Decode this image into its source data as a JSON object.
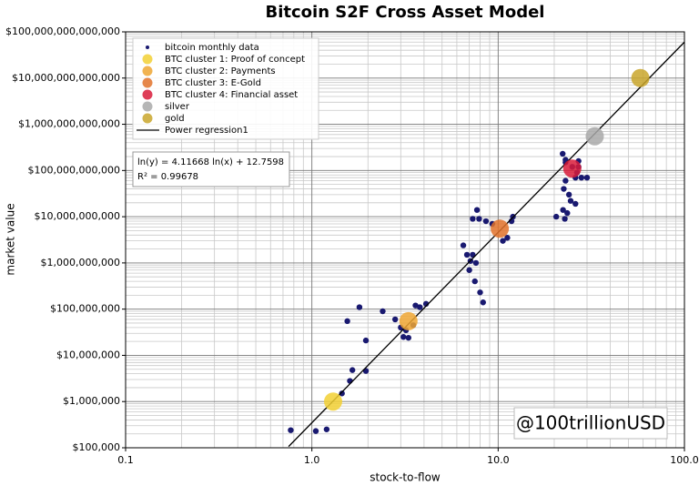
{
  "chart_data": {
    "type": "scatter",
    "title": "Bitcoin S2F Cross Asset Model",
    "xlabel": "stock-to-flow",
    "ylabel": "market value",
    "xscale": "log",
    "yscale": "log",
    "grid": true,
    "legend": "upper left",
    "xlim": [
      0.1,
      100
    ],
    "xticks": [
      0.1,
      {
        "value": 1,
        "label": "1.0"
      },
      {
        "value": 10,
        "label": "10.0"
      },
      {
        "value": 100,
        "label": "100.0"
      }
    ],
    "ylim": [
      100000,
      100000000000000
    ],
    "yticks": [
      {
        "value": 100000,
        "label": "$100,000"
      },
      {
        "value": 1000000,
        "label": "$1,000,000"
      },
      {
        "value": 10000000,
        "label": "$10,000,000"
      },
      {
        "value": 100000000,
        "label": "$100,000,000"
      },
      {
        "value": 1000000000,
        "label": "$1,000,000,000"
      },
      {
        "value": 10000000000,
        "label": "$10,000,000,000"
      },
      {
        "value": 100000000000,
        "label": "$100,000,000,000"
      },
      {
        "value": 1000000000000,
        "label": "$1,000,000,000,000"
      },
      {
        "value": 10000000000000,
        "label": "$10,000,000,000,000"
      },
      {
        "value": 100000000000000,
        "label": "$100,000,000,000,000"
      }
    ],
    "annotations": [
      "ln(y) = 4.11668 ln(x) + 12.7598",
      "R² = 0.99678"
    ],
    "watermark": "@100trillionUSD",
    "series": [
      {
        "name": "bitcoin monthly data",
        "color": "#191970",
        "marker": "point",
        "x": [
          0.77,
          1.05,
          1.2,
          1.45,
          1.6,
          1.65,
          1.95,
          1.95,
          1.55,
          1.8,
          2.4,
          2.8,
          3.0,
          3.1,
          3.3,
          3.5,
          3.6,
          3.8,
          4.1,
          3.2,
          6.5,
          6.8,
          7.3,
          7.6,
          7.5,
          8.0,
          8.3,
          7.3,
          7.7,
          7.9,
          8.6,
          9.3,
          10.6,
          11.2,
          11.8,
          12,
          7.1,
          7.0,
          20.5,
          22.3,
          22.8,
          23.5,
          22.2,
          23,
          24,
          24.5,
          26,
          22.5,
          23,
          26,
          28,
          30,
          25,
          27,
          27,
          23,
          26.5
        ],
        "values": [
          240000,
          230000,
          250000,
          1500000,
          2800000,
          4800000,
          4600000,
          21000000,
          55000000,
          110000000,
          90000000,
          60000000,
          40000000,
          25000000,
          24000000,
          45000000,
          120000000,
          110000000,
          130000000,
          35000000,
          2400000000,
          1500000000,
          1500000000,
          1000000000,
          400000000,
          230000000,
          140000000,
          9000000000,
          14000000000,
          9000000000,
          8000000000,
          7000000000,
          3000000000,
          3500000000,
          8000000000,
          10000000000,
          1100000000,
          700000000,
          10000000000,
          14000000000,
          9000000000,
          12000000000,
          230000000000,
          150000000000,
          30000000000,
          22000000000,
          19000000000,
          40000000000,
          60000000000,
          70000000000,
          70000000000,
          70000000000,
          120000000000,
          160000000000,
          120000000000,
          170000000000,
          90000000000
        ]
      },
      {
        "name": "BTC cluster 1: Proof of concept",
        "color": "#f2d034",
        "marker": "circle",
        "x": [
          1.3
        ],
        "values": [
          1000000
        ]
      },
      {
        "name": "BTC cluster 2: Payments",
        "color": "#efa632",
        "marker": "circle",
        "x": [
          3.3
        ],
        "values": [
          55000000
        ]
      },
      {
        "name": "BTC cluster 3: E-Gold",
        "color": "#e2722a",
        "marker": "circle",
        "x": [
          10.2
        ],
        "values": [
          5500000000
        ]
      },
      {
        "name": "BTC cluster 4: Financial asset",
        "color": "#d81b3a",
        "marker": "circle",
        "x": [
          25
        ],
        "values": [
          110000000000
        ]
      },
      {
        "name": "silver",
        "color": "#a9a9a9",
        "marker": "circle",
        "x": [
          33
        ],
        "values": [
          550000000000
        ]
      },
      {
        "name": "gold",
        "color": "#c9a62c",
        "marker": "circle",
        "x": [
          58
        ],
        "values": [
          10000000000000
        ]
      },
      {
        "name": "Power regression1",
        "color": "#000000",
        "marker": "line",
        "x": [
          0.75,
          100
        ],
        "values": [
          106500,
          60000000000000
        ]
      }
    ]
  }
}
